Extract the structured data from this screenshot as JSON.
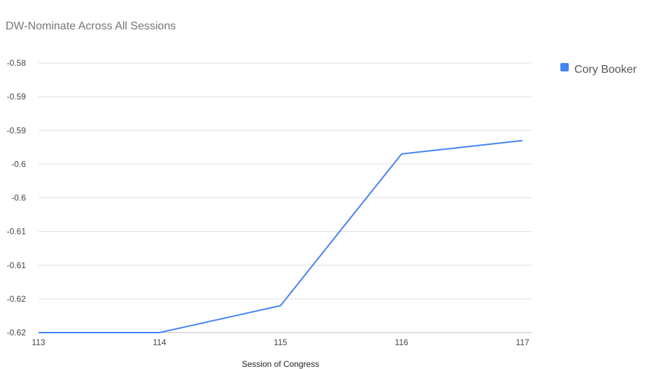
{
  "chart_data": {
    "type": "line",
    "title": "DW-Nominate Across All Sessions",
    "xlabel": "Session of Congress",
    "ylabel": "",
    "categories": [
      "113",
      "114",
      "115",
      "116",
      "117"
    ],
    "series": [
      {
        "name": "Cory Booker",
        "color": "#4285f4",
        "values": [
          -0.62,
          -0.62,
          -0.616,
          -0.5935,
          -0.5915
        ]
      }
    ],
    "ylim": [
      -0.62,
      -0.58
    ],
    "y_ticks": [
      -0.58,
      -0.585,
      -0.59,
      -0.595,
      -0.6,
      -0.605,
      -0.61,
      -0.615,
      -0.62
    ],
    "y_tick_labels": [
      "-0.58",
      "-0.59",
      "-0.59",
      "-0.6",
      "-0.6",
      "-0.61",
      "-0.61",
      "-0.62",
      "-0.62"
    ],
    "grid": true,
    "legend_position": "right"
  }
}
